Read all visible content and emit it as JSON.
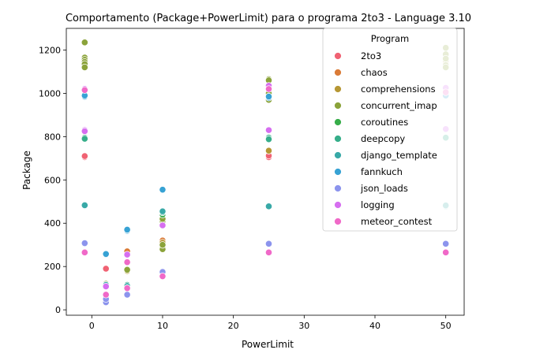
{
  "chart_data": {
    "type": "scatter",
    "title": "Comportamento (Package+PowerLimit) para o programa 2to3 - Language 3.10",
    "xlabel": "PowerLimit",
    "ylabel": "Package",
    "xlim": [
      -3.6,
      52.6
    ],
    "ylim": [
      -25,
      1300
    ],
    "xticks": [
      0,
      10,
      20,
      30,
      40,
      50
    ],
    "yticks": [
      0,
      200,
      400,
      600,
      800,
      1000,
      1200
    ],
    "grid": false,
    "legend": {
      "title": "Program",
      "placement": "top-right"
    },
    "series": [
      {
        "name": "2to3",
        "color": "#f06273",
        "points": [
          [
            -1,
            705
          ],
          [
            -1,
            710
          ],
          [
            2,
            190
          ],
          [
            5,
            265
          ],
          [
            25,
            705
          ],
          [
            25,
            712
          ]
        ]
      },
      {
        "name": "chaos",
        "color": "#da7b37",
        "points": [
          [
            5,
            270
          ],
          [
            10,
            320
          ]
        ]
      },
      {
        "name": "comprehensions",
        "color": "#b69734",
        "points": [
          [
            5,
            180
          ],
          [
            10,
            290
          ],
          [
            10,
            310
          ],
          [
            25,
            735
          ],
          [
            50,
            1150
          ]
        ]
      },
      {
        "name": "concurrent_imap",
        "color": "#8ba33a",
        "points": [
          [
            -1,
            1235
          ],
          [
            -1,
            1165
          ],
          [
            -1,
            1155
          ],
          [
            -1,
            1145
          ],
          [
            -1,
            1135
          ],
          [
            -1,
            1120
          ],
          [
            2,
            120
          ],
          [
            5,
            185
          ],
          [
            10,
            280
          ],
          [
            10,
            300
          ],
          [
            10,
            410
          ],
          [
            10,
            420
          ],
          [
            25,
            1065
          ],
          [
            25,
            1060
          ],
          [
            25,
            1000
          ],
          [
            25,
            980
          ],
          [
            25,
            970
          ],
          [
            50,
            1210
          ],
          [
            50,
            1180
          ],
          [
            50,
            1160
          ],
          [
            50,
            1130
          ],
          [
            50,
            1120
          ]
        ]
      },
      {
        "name": "coroutines",
        "color": "#37ad4a",
        "points": [
          [
            2,
            115
          ],
          [
            10,
            440
          ],
          [
            25,
            790
          ]
        ]
      },
      {
        "name": "deepcopy",
        "color": "#36ae8a",
        "points": [
          [
            -1,
            795
          ],
          [
            -1,
            790
          ],
          [
            2,
            110
          ],
          [
            5,
            115
          ],
          [
            10,
            450
          ],
          [
            25,
            795
          ],
          [
            25,
            788
          ],
          [
            50,
            795
          ]
        ]
      },
      {
        "name": "django_template",
        "color": "#38a9a7",
        "points": [
          [
            -1,
            480
          ],
          [
            -1,
            483
          ],
          [
            2,
            115
          ],
          [
            5,
            110
          ],
          [
            10,
            455
          ],
          [
            25,
            478
          ],
          [
            50,
            478
          ],
          [
            50,
            482
          ]
        ]
      },
      {
        "name": "fannkuch",
        "color": "#37a2d4",
        "points": [
          [
            -1,
            985
          ],
          [
            -1,
            990
          ],
          [
            2,
            255
          ],
          [
            2,
            258
          ],
          [
            5,
            365
          ],
          [
            5,
            370
          ],
          [
            10,
            555
          ],
          [
            25,
            980
          ],
          [
            25,
            985
          ],
          [
            50,
            990
          ]
        ]
      },
      {
        "name": "json_loads",
        "color": "#8c94ed",
        "points": [
          [
            -1,
            305
          ],
          [
            -1,
            308
          ],
          [
            2,
            35
          ],
          [
            2,
            50
          ],
          [
            5,
            70
          ],
          [
            10,
            175
          ],
          [
            25,
            305
          ],
          [
            50,
            305
          ]
        ]
      },
      {
        "name": "logging",
        "color": "#d66ef0",
        "points": [
          [
            -1,
            1020
          ],
          [
            -1,
            830
          ],
          [
            -1,
            825
          ],
          [
            2,
            108
          ],
          [
            5,
            255
          ],
          [
            10,
            390
          ],
          [
            25,
            1035
          ],
          [
            25,
            830
          ],
          [
            50,
            1025
          ],
          [
            50,
            835
          ]
        ]
      },
      {
        "name": "meteor_contest",
        "color": "#f069c8",
        "points": [
          [
            -1,
            1015
          ],
          [
            -1,
            265
          ],
          [
            2,
            70
          ],
          [
            5,
            220
          ],
          [
            5,
            100
          ],
          [
            10,
            155
          ],
          [
            25,
            1020
          ],
          [
            25,
            265
          ],
          [
            50,
            1005
          ],
          [
            50,
            265
          ]
        ]
      }
    ]
  }
}
